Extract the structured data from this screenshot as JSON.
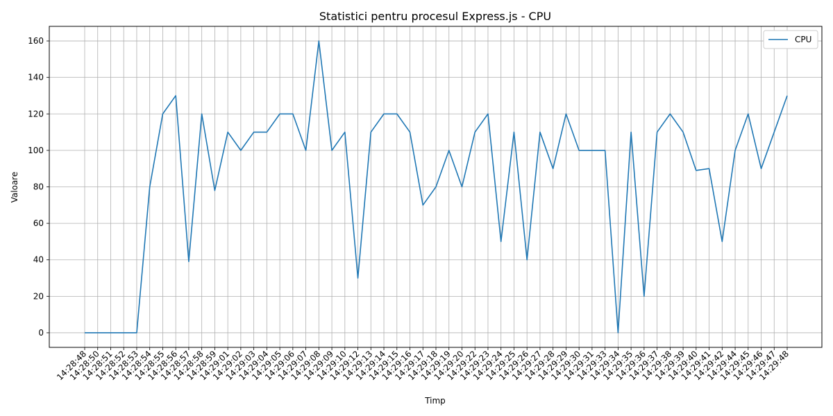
{
  "chart_data": {
    "type": "line",
    "title": "Statistici pentru procesul Express.js - CPU",
    "xlabel": "Timp",
    "ylabel": "Valoare",
    "ylim": [
      -8,
      168
    ],
    "yticks": [
      0,
      20,
      40,
      60,
      80,
      100,
      120,
      140,
      160
    ],
    "grid": true,
    "legend_position": "top-right",
    "x": [
      "14:28:48",
      "14:28:50",
      "14:28:51",
      "14:28:52",
      "14:28:53",
      "14:28:54",
      "14:28:55",
      "14:28:56",
      "14:28:57",
      "14:28:58",
      "14:28:59",
      "14:29:01",
      "14:29:02",
      "14:29:03",
      "14:29:04",
      "14:29:05",
      "14:29:06",
      "14:29:07",
      "14:29:08",
      "14:29:09",
      "14:29:10",
      "14:29:12",
      "14:29:13",
      "14:29:14",
      "14:29:15",
      "14:29:16",
      "14:29:17",
      "14:29:18",
      "14:29:19",
      "14:29:20",
      "14:29:22",
      "14:29:23",
      "14:29:24",
      "14:29:25",
      "14:29:26",
      "14:29:27",
      "14:29:28",
      "14:29:29",
      "14:29:30",
      "14:29:31",
      "14:29:33",
      "14:29:34",
      "14:29:35",
      "14:29:36",
      "14:29:37",
      "14:29:38",
      "14:29:39",
      "14:29:40",
      "14:29:41",
      "14:29:42",
      "14:29:44",
      "14:29:45",
      "14:29:46",
      "14:29:47",
      "14:29:48"
    ],
    "series": [
      {
        "name": "CPU",
        "color": "#1f77b4",
        "values": [
          0,
          0,
          0,
          0,
          0,
          80,
          120,
          130,
          39,
          120,
          78,
          110,
          100,
          110,
          110,
          120,
          120,
          100,
          160,
          100,
          110,
          30,
          110,
          120,
          120,
          110,
          70,
          80,
          100,
          80,
          110,
          120,
          50,
          110,
          40,
          110,
          90,
          120,
          100,
          100,
          100,
          0,
          110,
          20,
          110,
          120,
          110,
          89,
          90,
          50,
          100,
          120,
          90,
          110,
          130
        ]
      }
    ]
  }
}
